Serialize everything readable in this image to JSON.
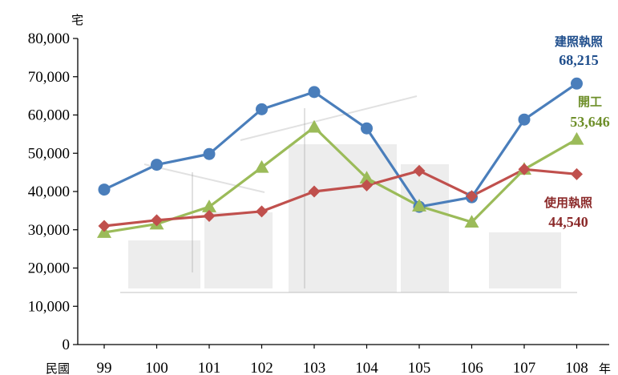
{
  "chart_data": {
    "type": "line",
    "y_unit": "宅",
    "x_prefix": "民國",
    "x_suffix": "年",
    "categories": [
      "99",
      "100",
      "101",
      "102",
      "103",
      "104",
      "105",
      "106",
      "107",
      "108"
    ],
    "ylim": [
      0,
      80000
    ],
    "yticks": [
      "0",
      "10,000",
      "20,000",
      "30,000",
      "40,000",
      "50,000",
      "60,000",
      "70,000",
      "80,000"
    ],
    "grid": false,
    "series": [
      {
        "name": "建照執照",
        "marker": "circle",
        "color": "#4a7ebb",
        "label_color": "#1f4e8c",
        "end_label": "68,215",
        "values": [
          40500,
          47000,
          49800,
          61500,
          66000,
          56500,
          36000,
          38500,
          58800,
          68215
        ]
      },
      {
        "name": "開工",
        "marker": "triangle",
        "color": "#9bbb59",
        "label_color": "#6e8f2a",
        "end_label": "53,646",
        "values": [
          29300,
          31500,
          36000,
          46300,
          56800,
          43500,
          36200,
          32000,
          45800,
          53646
        ]
      },
      {
        "name": "使用執照",
        "marker": "diamond",
        "color": "#c0504d",
        "label_color": "#8b2a2a",
        "end_label": "44,540",
        "values": [
          31000,
          32500,
          33600,
          34800,
          40000,
          41600,
          45400,
          38800,
          45800,
          44540
        ]
      }
    ]
  }
}
